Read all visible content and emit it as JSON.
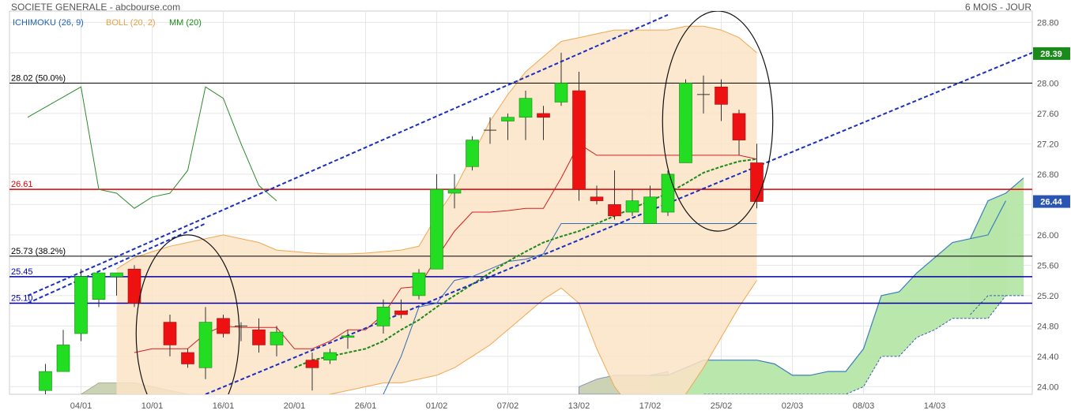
{
  "header": {
    "title": "SOCIETE GENERALE - abcbourse.com",
    "period": "6 MOIS - JOUR"
  },
  "indicators": [
    {
      "name": "ICHIMOKU (26, 9)",
      "color": "#1f5fb5"
    },
    {
      "name": "BOLL (20, 2)",
      "color": "#e8a045"
    },
    {
      "name": "MM (20)",
      "color": "#1a8a1a"
    }
  ],
  "price_tags": {
    "right_top": {
      "label": "28.39",
      "value": 28.39,
      "color": "#1a8a1a"
    },
    "right_bottom": {
      "label": "26.44",
      "value": 26.44,
      "color": "#2a55b0"
    }
  },
  "chart_data": {
    "type": "candlestick",
    "y_axis": {
      "min": 23.9,
      "max": 28.95,
      "ticks": [
        "24.00",
        "24.40",
        "24.80",
        "25.20",
        "25.60",
        "26.00",
        "26.40",
        "26.80",
        "27.20",
        "27.60",
        "28.00",
        "28.40",
        "28.80"
      ],
      "tick_values": [
        24.0,
        24.4,
        24.8,
        25.2,
        25.6,
        26.0,
        26.4,
        26.8,
        27.2,
        27.6,
        28.0,
        28.4,
        28.8
      ]
    },
    "x_labels": [
      "04/01",
      "10/01",
      "16/01",
      "20/01",
      "26/01",
      "01/02",
      "07/02",
      "13/02",
      "17/02",
      "25/02",
      "02/03",
      "08/03",
      "14/03"
    ],
    "x_label_days": [
      3,
      7,
      11,
      15,
      19,
      23,
      27,
      31,
      35,
      39,
      43,
      47,
      51
    ],
    "levels": [
      {
        "label": "28.02  (50.0%)",
        "value": 28.0,
        "color": "#000000"
      },
      {
        "label": "26.61",
        "value": 26.6,
        "color": "#dd0000"
      },
      {
        "label": "25.73  (38.2%)",
        "value": 25.72,
        "color": "#000000"
      },
      {
        "label": "25.45",
        "value": 25.45,
        "color": "#0000aa"
      },
      {
        "label": "25.10",
        "value": 25.1,
        "color": "#0000aa"
      }
    ],
    "candles": [
      {
        "d": 1,
        "o": 23.95,
        "h": 24.3,
        "l": 23.9,
        "c": 24.2
      },
      {
        "d": 2,
        "o": 24.2,
        "h": 24.75,
        "l": 24.2,
        "c": 24.55
      },
      {
        "d": 3,
        "o": 24.7,
        "h": 25.55,
        "l": 24.6,
        "c": 25.45
      },
      {
        "d": 4,
        "o": 25.15,
        "h": 25.5,
        "l": 25.05,
        "c": 25.5
      },
      {
        "d": 5,
        "o": 25.45,
        "h": 25.5,
        "l": 25.2,
        "c": 25.5
      },
      {
        "d": 6,
        "o": 25.55,
        "h": 25.6,
        "l": 25.05,
        "c": 25.1
      },
      {
        "d": 8,
        "o": 24.85,
        "h": 24.95,
        "l": 24.4,
        "c": 24.55
      },
      {
        "d": 9,
        "o": 24.45,
        "h": 24.5,
        "l": 24.25,
        "c": 24.3
      },
      {
        "d": 10,
        "o": 24.25,
        "h": 25.05,
        "l": 24.1,
        "c": 24.85
      },
      {
        "d": 11,
        "o": 24.9,
        "h": 24.95,
        "l": 24.65,
        "c": 24.7
      },
      {
        "d": 12,
        "o": 24.8,
        "h": 24.85,
        "l": 24.6,
        "c": 24.78
      },
      {
        "d": 13,
        "o": 24.75,
        "h": 24.9,
        "l": 24.45,
        "c": 24.55
      },
      {
        "d": 14,
        "o": 24.55,
        "h": 24.8,
        "l": 24.4,
        "c": 24.72
      },
      {
        "d": 16,
        "o": 24.35,
        "h": 24.45,
        "l": 23.95,
        "c": 24.25
      },
      {
        "d": 17,
        "o": 24.35,
        "h": 24.5,
        "l": 24.3,
        "c": 24.45
      },
      {
        "d": 18,
        "o": 24.65,
        "h": 24.75,
        "l": 24.5,
        "c": 24.67
      },
      {
        "d": 20,
        "o": 24.8,
        "h": 25.15,
        "l": 24.7,
        "c": 25.05
      },
      {
        "d": 21,
        "o": 25.0,
        "h": 25.15,
        "l": 24.9,
        "c": 24.95
      },
      {
        "d": 22,
        "o": 25.2,
        "h": 25.55,
        "l": 25.15,
        "c": 25.5
      },
      {
        "d": 23,
        "o": 25.55,
        "h": 26.8,
        "l": 25.55,
        "c": 26.6
      },
      {
        "d": 24,
        "o": 26.55,
        "h": 26.8,
        "l": 26.35,
        "c": 26.6
      },
      {
        "d": 25,
        "o": 26.9,
        "h": 27.3,
        "l": 26.85,
        "c": 27.25
      },
      {
        "d": 26,
        "o": 27.38,
        "h": 27.55,
        "l": 27.2,
        "c": 27.38
      },
      {
        "d": 27,
        "o": 27.5,
        "h": 27.6,
        "l": 27.25,
        "c": 27.55
      },
      {
        "d": 28,
        "o": 27.55,
        "h": 27.9,
        "l": 27.25,
        "c": 27.8
      },
      {
        "d": 29,
        "o": 27.6,
        "h": 27.7,
        "l": 27.25,
        "c": 27.55
      },
      {
        "d": 30,
        "o": 27.75,
        "h": 28.4,
        "l": 27.7,
        "c": 28.0
      },
      {
        "d": 31,
        "o": 27.9,
        "h": 28.15,
        "l": 26.45,
        "c": 26.6
      },
      {
        "d": 32,
        "o": 26.5,
        "h": 26.65,
        "l": 26.4,
        "c": 26.45
      },
      {
        "d": 33,
        "o": 26.4,
        "h": 26.85,
        "l": 26.2,
        "c": 26.25
      },
      {
        "d": 34,
        "o": 26.3,
        "h": 26.6,
        "l": 26.25,
        "c": 26.45
      },
      {
        "d": 35,
        "o": 26.15,
        "h": 26.65,
        "l": 26.15,
        "c": 26.5
      },
      {
        "d": 36,
        "o": 26.3,
        "h": 26.85,
        "l": 26.25,
        "c": 26.8
      },
      {
        "d": 37,
        "o": 26.95,
        "h": 28.05,
        "l": 26.95,
        "c": 28.0
      },
      {
        "d": 38,
        "o": 27.85,
        "h": 28.1,
        "l": 27.6,
        "c": 27.85
      },
      {
        "d": 39,
        "o": 27.95,
        "h": 28.05,
        "l": 27.5,
        "c": 27.72
      },
      {
        "d": 40,
        "o": 27.6,
        "h": 27.65,
        "l": 27.05,
        "c": 27.25
      },
      {
        "d": 41,
        "o": 26.95,
        "h": 27.2,
        "l": 26.35,
        "c": 26.44
      }
    ],
    "bollinger": {
      "days": [
        5,
        6,
        7,
        8,
        9,
        10,
        11,
        12,
        13,
        14,
        15,
        16,
        17,
        18,
        19,
        20,
        21,
        22,
        23,
        24,
        25,
        26,
        27,
        28,
        29,
        30,
        31,
        32,
        33,
        34,
        35,
        36,
        37,
        38,
        39,
        40,
        41
      ],
      "upper": [
        25.55,
        25.7,
        25.78,
        25.85,
        25.9,
        25.95,
        26.0,
        25.95,
        25.9,
        25.8,
        25.78,
        25.76,
        25.75,
        25.75,
        25.76,
        25.78,
        25.8,
        25.85,
        26.25,
        26.6,
        27.05,
        27.5,
        27.85,
        28.15,
        28.35,
        28.55,
        28.6,
        28.65,
        28.7,
        28.7,
        28.7,
        28.7,
        28.75,
        28.75,
        28.7,
        28.6,
        28.4
      ],
      "lower": [
        23.8,
        23.7,
        23.6,
        23.55,
        23.55,
        23.6,
        23.65,
        23.7,
        23.75,
        23.75,
        23.8,
        23.85,
        23.9,
        23.95,
        24.0,
        24.05,
        24.05,
        24.1,
        24.15,
        24.25,
        24.4,
        24.55,
        24.75,
        24.95,
        25.15,
        25.3,
        25.1,
        24.5,
        24.0,
        23.7,
        23.6,
        23.7,
        23.9,
        24.25,
        24.65,
        25.05,
        25.4
      ],
      "middle_days": [
        6,
        7,
        8,
        9,
        10,
        11,
        12,
        13,
        14,
        15,
        16,
        17,
        18,
        19,
        20,
        21,
        22,
        23,
        24,
        25,
        26,
        27,
        28,
        29,
        30,
        31,
        32,
        33,
        34,
        35,
        36,
        37,
        38,
        39,
        40,
        41
      ],
      "middle": [
        24.45,
        24.5,
        24.5,
        24.5,
        24.7,
        24.8,
        24.78,
        24.78,
        24.78,
        24.5,
        24.5,
        24.6,
        24.75,
        24.75,
        24.95,
        25.3,
        25.32,
        25.7,
        26.05,
        26.3,
        26.3,
        26.32,
        26.35,
        26.35,
        26.75,
        27.2,
        27.05,
        27.05,
        27.05,
        27.05,
        27.05,
        27.05,
        27.05,
        27.05,
        27.05,
        27.0,
        26.95
      ]
    },
    "mm20": {
      "days": [
        15,
        16,
        17,
        18,
        19,
        20,
        21,
        22,
        23,
        24,
        25,
        26,
        27,
        28,
        29,
        30,
        31,
        32,
        33,
        34,
        35,
        36,
        37,
        38,
        39,
        40,
        41
      ],
      "values": [
        24.25,
        24.35,
        24.4,
        24.45,
        24.5,
        24.6,
        24.75,
        24.88,
        25.05,
        25.2,
        25.35,
        25.5,
        25.65,
        25.78,
        25.9,
        25.98,
        26.05,
        26.15,
        26.25,
        26.35,
        26.45,
        26.55,
        26.68,
        26.82,
        26.9,
        26.97,
        27.0
      ]
    },
    "ichimoku_chikou": {
      "days": [
        0,
        3,
        4,
        5,
        6,
        7,
        8,
        9,
        10,
        11,
        12,
        13,
        14
      ],
      "values": [
        27.55,
        27.95,
        26.6,
        26.55,
        26.35,
        26.5,
        26.55,
        26.85,
        27.95,
        27.8,
        27.2,
        26.65,
        26.45
      ]
    },
    "ichimoku_kijun": {
      "days": [
        20,
        21,
        22,
        23,
        24,
        25,
        26,
        27,
        28,
        29,
        30,
        31,
        32,
        33,
        34,
        35,
        36,
        37,
        38,
        39,
        40,
        41
      ],
      "values": [
        23.9,
        24.4,
        25.05,
        25.1,
        25.4,
        25.45,
        25.55,
        25.65,
        25.68,
        25.75,
        26.15,
        26.15,
        26.15,
        26.15,
        26.15,
        26.15,
        26.15,
        26.15,
        26.15,
        26.15,
        26.15,
        26.15
      ]
    },
    "cloud_green": {
      "days": [
        35,
        36,
        37,
        38,
        39,
        40,
        41,
        42,
        43,
        44,
        45,
        46,
        47,
        48,
        49,
        50,
        51,
        52,
        53,
        54,
        55
      ],
      "span_a": [
        24.15,
        24.15,
        24.25,
        24.35,
        24.35,
        24.35,
        24.35,
        24.3,
        24.15,
        24.15,
        24.2,
        24.2,
        24.5,
        25.2,
        25.25,
        25.5,
        25.7,
        25.9,
        25.95,
        26.0,
        26.45
      ],
      "span_b": [
        23.8,
        23.8,
        23.8,
        23.9,
        23.9,
        23.9,
        23.9,
        23.9,
        23.9,
        23.9,
        23.9,
        23.9,
        24.0,
        24.4,
        24.4,
        24.65,
        24.75,
        24.9,
        24.9,
        24.9,
        25.2
      ]
    },
    "cloud_gray": {
      "days": [
        3,
        4,
        5,
        6,
        7,
        8,
        9,
        10
      ],
      "span_a": [
        23.9,
        24.05,
        24.05,
        24.05,
        24.0,
        23.95,
        23.9,
        23.9
      ]
    },
    "cloud_gray_2": {
      "days": [
        31,
        32,
        33,
        34,
        35,
        36
      ],
      "span_a": [
        24.0,
        24.1,
        24.15,
        24.15,
        24.15,
        24.2
      ]
    },
    "tail_cloud_extension": {
      "days": [
        53,
        54,
        55,
        56
      ],
      "span_a": [
        25.95,
        26.45,
        26.55,
        26.75
      ],
      "span_b": [
        24.95,
        25.2,
        25.2,
        25.2
      ]
    },
    "trend_lines": [
      {
        "name": "upper-channel",
        "d1": 0,
        "v1": 25.2,
        "d2": 36,
        "v2": 28.9
      },
      {
        "name": "lower-channel",
        "d1": 10,
        "v1": 23.9,
        "d2": 57,
        "v2": 28.45
      },
      {
        "name": "mid-channel",
        "d1": 0,
        "v1": 25.1,
        "d2": 10,
        "v2": 26.15
      }
    ],
    "ellipses": [
      {
        "d": 9,
        "v": 24.7,
        "rd": 2.9,
        "rv": 1.3
      },
      {
        "d": 38.8,
        "v": 27.5,
        "rd": 3.1,
        "rv": 1.45
      }
    ]
  }
}
